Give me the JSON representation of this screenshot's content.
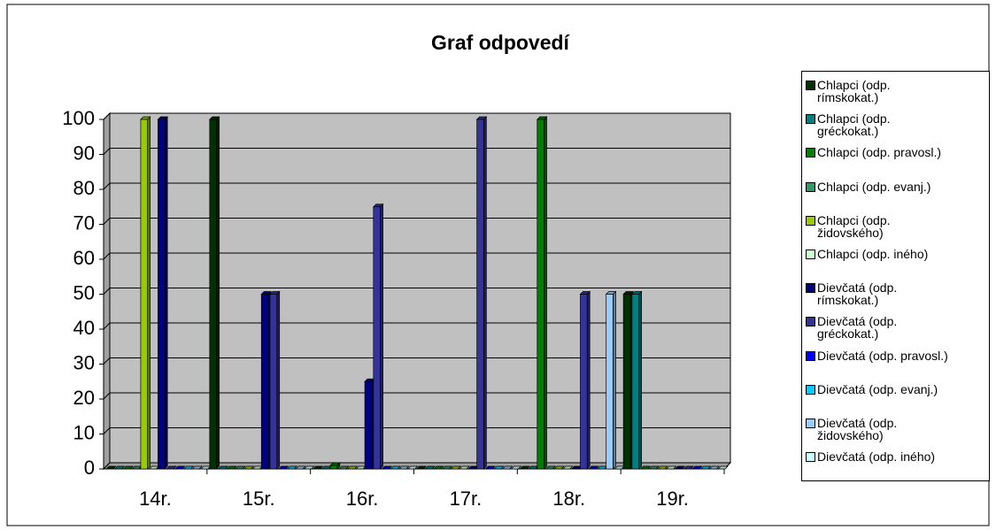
{
  "chart_data": {
    "type": "bar",
    "title": "Graf odpovedí",
    "categories": [
      "14r.",
      "15r.",
      "16r.",
      "17r.",
      "18r.",
      "19r."
    ],
    "ylim": [
      0,
      100
    ],
    "yticks": [
      0,
      10,
      20,
      30,
      40,
      50,
      60,
      70,
      80,
      90,
      100
    ],
    "grid": true,
    "series": [
      {
        "name": "Chlapci (odp. rímskokat.)",
        "color": "#003300",
        "values": [
          0,
          100,
          0,
          0,
          0,
          50
        ]
      },
      {
        "name": "Chlapci (odp. gréckokat.)",
        "color": "#008080",
        "values": [
          0,
          0,
          0,
          0,
          0,
          50
        ]
      },
      {
        "name": "Chlapci (odp. pravosl.)",
        "color": "#008000",
        "values": [
          0,
          0,
          1,
          0,
          100,
          0
        ]
      },
      {
        "name": "Chlapci (odp. evanj.)",
        "color": "#339966",
        "values": [
          0,
          0,
          0,
          0,
          0,
          0
        ]
      },
      {
        "name": "Chlapci (odp. židovského)",
        "color": "#99CC00",
        "values": [
          100,
          0,
          0,
          0,
          0,
          0
        ]
      },
      {
        "name": "Chlapci (odp. iného)",
        "color": "#CCFFCC",
        "values": [
          0,
          0,
          0,
          0,
          0,
          0
        ]
      },
      {
        "name": "Dievčatá (odp. rímskokat.)",
        "color": "#000080",
        "values": [
          100,
          50,
          25,
          0,
          0,
          0
        ]
      },
      {
        "name": "Dievčatá (odp. gréckokat.)",
        "color": "#333399",
        "values": [
          0,
          50,
          75,
          100,
          50,
          0
        ]
      },
      {
        "name": "Dievčatá (odp. pravosl.)",
        "color": "#0000FF",
        "values": [
          0,
          0,
          0,
          0,
          0,
          0
        ]
      },
      {
        "name": "Dievčatá (odp. evanj.)",
        "color": "#00CCFF",
        "values": [
          0,
          0,
          0,
          0,
          0,
          0
        ]
      },
      {
        "name": "Dievčatá (odp. židovského)",
        "color": "#99CCFF",
        "values": [
          0,
          0,
          0,
          0,
          50,
          0
        ]
      },
      {
        "name": "Dievčatá (odp. iného)",
        "color": "#CCFFFF",
        "values": [
          0,
          0,
          0,
          0,
          0,
          0
        ]
      }
    ]
  }
}
